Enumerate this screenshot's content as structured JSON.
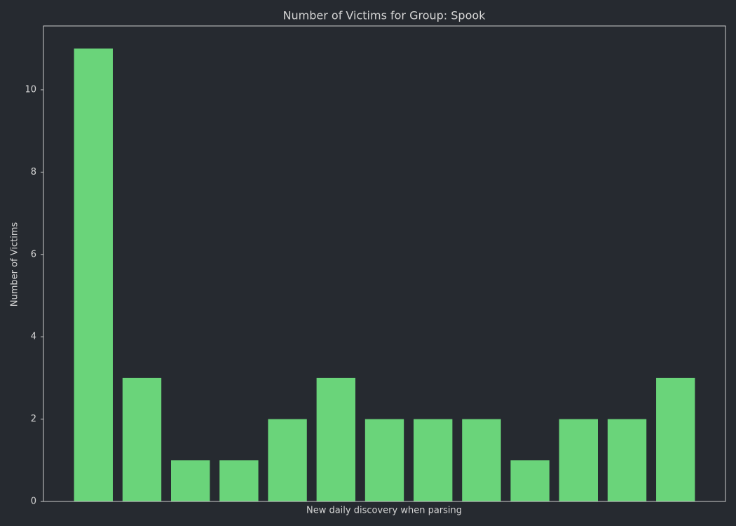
{
  "chart_data": {
    "type": "bar",
    "title": "Number of Victims for Group: Spook",
    "xlabel": "New daily discovery when parsing",
    "ylabel": "Number of Victims",
    "categories": [
      null,
      null,
      null,
      null,
      null,
      null,
      null,
      null,
      null,
      null,
      null,
      null,
      null
    ],
    "values": [
      11,
      3,
      1,
      1,
      2,
      3,
      2,
      2,
      2,
      1,
      2,
      2,
      3
    ],
    "color": "#6ad47a",
    "ylim": [
      0,
      11.55
    ],
    "yticks": [
      0,
      2,
      4,
      6,
      8,
      10
    ],
    "grid": false
  }
}
